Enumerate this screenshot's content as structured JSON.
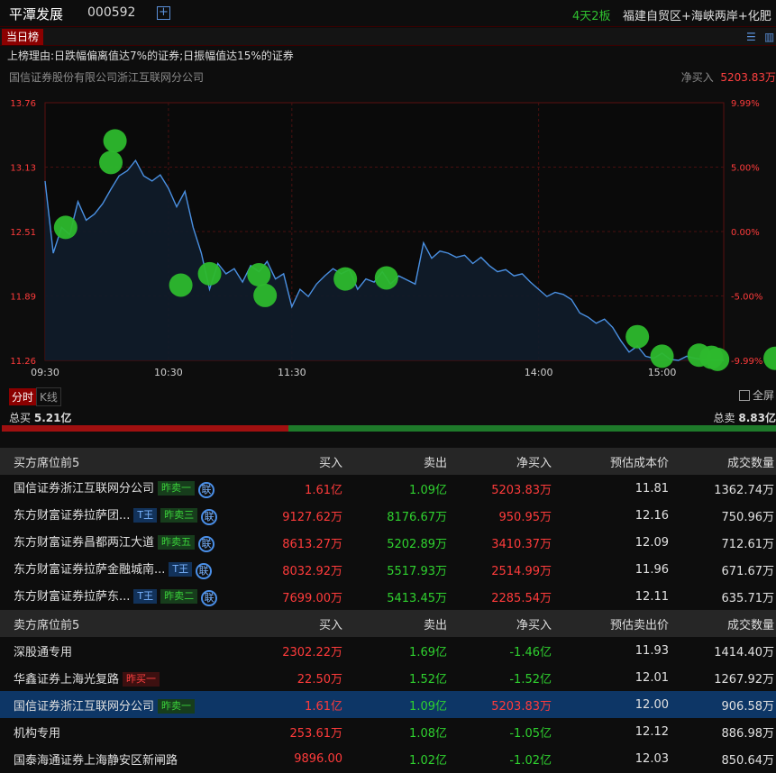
{
  "header": {
    "stock_name": "平潭发展",
    "stock_code": "000592",
    "add_icon": "plus-square-icon",
    "boards": "4天2板",
    "concepts": "福建自贸区+海峡两岸+化肥"
  },
  "tabbar": {
    "tab_label": "当日榜",
    "icons": [
      "list-icon",
      "columns-icon"
    ]
  },
  "reason": "上榜理由:日跌幅偏离值达7%的证券;日振幅值达15%的证券",
  "seat": {
    "name": "国信证券股份有限公司浙江互联网分公司",
    "net_label": "净买入",
    "net_value": "5203.83万"
  },
  "chart_data": {
    "type": "line",
    "title": "",
    "xlabel": "",
    "ylabel": "",
    "x_ticks": [
      "09:30",
      "10:30",
      "11:30",
      "14:00",
      "15:00"
    ],
    "y_left_ticks": [
      "13.76",
      "13.13",
      "12.51",
      "11.89",
      "11.26"
    ],
    "y_right_ticks": [
      "9.99%",
      "5.00%",
      "0.00%",
      "-5.00%",
      "-9.99%"
    ],
    "ylim": [
      11.26,
      13.76
    ],
    "base_price": 12.51,
    "x_unit": "minutes since 09:30 (session time)",
    "series": [
      {
        "values": [
          [
            0,
            13.0
          ],
          [
            4,
            12.3
          ],
          [
            8,
            12.55
          ],
          [
            12,
            12.48
          ],
          [
            16,
            12.8
          ],
          [
            20,
            12.62
          ],
          [
            24,
            12.68
          ],
          [
            28,
            12.78
          ],
          [
            32,
            12.92
          ],
          [
            36,
            13.05
          ],
          [
            40,
            13.1
          ],
          [
            44,
            13.2
          ],
          [
            48,
            13.05
          ],
          [
            52,
            13.0
          ],
          [
            56,
            13.06
          ],
          [
            60,
            12.93
          ],
          [
            64,
            12.75
          ],
          [
            68,
            12.9
          ],
          [
            72,
            12.55
          ],
          [
            76,
            12.3
          ],
          [
            80,
            11.95
          ],
          [
            84,
            12.2
          ],
          [
            88,
            12.1
          ],
          [
            92,
            12.15
          ],
          [
            96,
            12.02
          ],
          [
            100,
            12.18
          ],
          [
            104,
            12.12
          ],
          [
            108,
            12.22
          ],
          [
            112,
            12.05
          ],
          [
            116,
            12.1
          ],
          [
            120,
            11.78
          ],
          [
            124,
            11.95
          ],
          [
            128,
            11.88
          ],
          [
            132,
            12.0
          ],
          [
            136,
            12.08
          ],
          [
            140,
            12.15
          ],
          [
            144,
            12.1
          ],
          [
            148,
            12.14
          ],
          [
            152,
            11.95
          ],
          [
            156,
            12.05
          ],
          [
            160,
            12.02
          ],
          [
            164,
            12.12
          ],
          [
            168,
            12.0
          ],
          [
            172,
            12.08
          ],
          [
            176,
            12.04
          ],
          [
            180,
            12.0
          ],
          [
            184,
            12.4
          ],
          [
            188,
            12.25
          ],
          [
            192,
            12.32
          ],
          [
            196,
            12.3
          ],
          [
            200,
            12.26
          ],
          [
            204,
            12.28
          ],
          [
            208,
            12.2
          ],
          [
            212,
            12.26
          ],
          [
            216,
            12.18
          ],
          [
            220,
            12.12
          ],
          [
            224,
            12.14
          ],
          [
            228,
            12.08
          ],
          [
            232,
            12.1
          ],
          [
            236,
            12.02
          ],
          [
            240,
            11.95
          ],
          [
            244,
            11.88
          ],
          [
            248,
            11.92
          ],
          [
            252,
            11.9
          ],
          [
            256,
            11.85
          ],
          [
            260,
            11.72
          ],
          [
            264,
            11.68
          ],
          [
            268,
            11.62
          ],
          [
            272,
            11.66
          ],
          [
            276,
            11.58
          ],
          [
            280,
            11.45
          ],
          [
            284,
            11.34
          ],
          [
            288,
            11.4
          ],
          [
            292,
            11.3
          ],
          [
            296,
            11.28
          ],
          [
            300,
            11.33
          ],
          [
            304,
            11.27
          ],
          [
            308,
            11.26
          ],
          [
            312,
            11.3
          ],
          [
            316,
            11.28
          ],
          [
            320,
            11.27
          ],
          [
            324,
            11.26
          ],
          [
            330,
            11.26
          ]
        ]
      }
    ],
    "trade_markers": [
      [
        10,
        12.55
      ],
      [
        32,
        13.18
      ],
      [
        34,
        13.39
      ],
      [
        66,
        11.99
      ],
      [
        80,
        12.1
      ],
      [
        104,
        12.09
      ],
      [
        107,
        11.89
      ],
      [
        146,
        12.05
      ],
      [
        166,
        12.06
      ],
      [
        288,
        11.49
      ],
      [
        300,
        11.3
      ],
      [
        318,
        11.31
      ],
      [
        324,
        11.29
      ],
      [
        327,
        11.27
      ],
      [
        355,
        11.28
      ]
    ],
    "marker_color": "#2db92d",
    "line_color": "#4a90e2",
    "grid": true
  },
  "chart_tabs": {
    "intraday": "分时",
    "kline": "K线",
    "fullscreen": "全屏"
  },
  "totals": {
    "buy_label": "总买",
    "buy_value": "5.21亿",
    "sell_label": "总卖",
    "sell_value": "8.83亿",
    "buy_ratio": 0.37
  },
  "buy_table": {
    "headers": [
      "买方席位前5",
      "买入",
      "卖出",
      "净买入",
      "预估成本价",
      "成交数量"
    ],
    "rows": [
      {
        "name": "国信证券浙江互联网分公司",
        "badges": [
          {
            "text": "昨卖一",
            "kind": "g"
          },
          {
            "text": "联",
            "kind": "l"
          }
        ],
        "buy": "1.61亿",
        "sell": "1.09亿",
        "net": "5203.83万",
        "price": "11.81",
        "qty": "1362.74万"
      },
      {
        "name": "东方财富证券拉萨团...",
        "badges": [
          {
            "text": "T王",
            "kind": "t"
          },
          {
            "text": "昨卖三",
            "kind": "g"
          },
          {
            "text": "联",
            "kind": "l"
          }
        ],
        "buy": "9127.62万",
        "sell": "8176.67万",
        "net": "950.95万",
        "price": "12.16",
        "qty": "750.96万"
      },
      {
        "name": "东方财富证券昌都两江大道",
        "badges": [
          {
            "text": "昨卖五",
            "kind": "g"
          },
          {
            "text": "联",
            "kind": "l"
          }
        ],
        "buy": "8613.27万",
        "sell": "5202.89万",
        "net": "3410.37万",
        "price": "12.09",
        "qty": "712.61万"
      },
      {
        "name": "东方财富证券拉萨金融城南...",
        "badges": [
          {
            "text": "T王",
            "kind": "t"
          },
          {
            "text": "联",
            "kind": "l"
          }
        ],
        "buy": "8032.92万",
        "sell": "5517.93万",
        "net": "2514.99万",
        "price": "11.96",
        "qty": "671.67万"
      },
      {
        "name": "东方财富证券拉萨东...",
        "badges": [
          {
            "text": "T王",
            "kind": "t"
          },
          {
            "text": "昨卖二",
            "kind": "g"
          },
          {
            "text": "联",
            "kind": "l"
          }
        ],
        "buy": "7699.00万",
        "sell": "5413.45万",
        "net": "2285.54万",
        "price": "12.11",
        "qty": "635.71万"
      }
    ]
  },
  "sell_table": {
    "headers": [
      "卖方席位前5",
      "买入",
      "卖出",
      "净买入",
      "预估卖出价",
      "成交数量"
    ],
    "rows": [
      {
        "name": "深股通专用",
        "badges": [],
        "buy": "2302.22万",
        "sell": "1.69亿",
        "net": "-1.46亿",
        "price": "11.93",
        "qty": "1414.40万"
      },
      {
        "name": "华鑫证券上海光复路",
        "badges": [
          {
            "text": "昨买一",
            "kind": "r"
          }
        ],
        "buy": "22.50万",
        "sell": "1.52亿",
        "net": "-1.52亿",
        "price": "12.01",
        "qty": "1267.92万"
      },
      {
        "name": "国信证券浙江互联网分公司",
        "badges": [
          {
            "text": "昨卖一",
            "kind": "g"
          }
        ],
        "buy": "1.61亿",
        "sell": "1.09亿",
        "net": "5203.83万",
        "price": "12.00",
        "qty": "906.58万",
        "highlight": true
      },
      {
        "name": "机构专用",
        "badges": [],
        "buy": "253.61万",
        "sell": "1.08亿",
        "net": "-1.05亿",
        "price": "12.12",
        "qty": "886.98万"
      },
      {
        "name": "国泰海通证券上海静安区新闸路",
        "badges": [],
        "buy": "9896.00",
        "sell": "1.02亿",
        "net": "-1.02亿",
        "price": "12.03",
        "qty": "850.64万"
      }
    ]
  }
}
